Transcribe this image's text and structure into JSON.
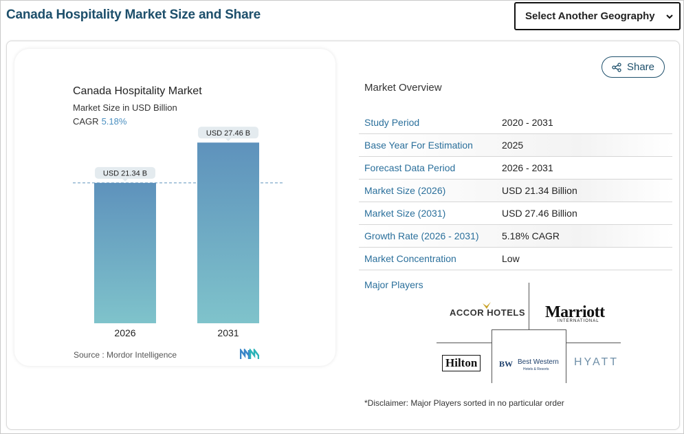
{
  "header": {
    "title": "Canada Hospitality Market Size and Share",
    "geo_select_label": "Select Another Geography"
  },
  "chart": {
    "title": "Canada Hospitality Market",
    "subtitle": "Market Size in USD Billion",
    "cagr_label": "CAGR",
    "cagr_value": "5.18%",
    "source": "Source :  Mordor Intelligence"
  },
  "chart_data": {
    "type": "bar",
    "categories": [
      "2026",
      "2031"
    ],
    "values": [
      21.34,
      27.46
    ],
    "data_labels": [
      "USD 21.34 B",
      "USD 27.46 B"
    ],
    "title": "Canada Hospitality Market",
    "ylabel": "Market Size in USD Billion",
    "xlabel": "",
    "ylim": [
      0,
      30
    ],
    "reference_line": 21.34,
    "colors": {
      "bar_top": "#5e92bc",
      "bar_bottom": "#7fc3cb",
      "line": "#5e92bc"
    }
  },
  "share": {
    "label": "Share"
  },
  "overview": {
    "heading": "Market Overview",
    "rows": [
      {
        "key": "Study Period",
        "value": "2020 - 2031"
      },
      {
        "key": "Base Year For Estimation",
        "value": "2025"
      },
      {
        "key": "Forecast Data Period",
        "value": "2026 - 2031"
      },
      {
        "key": "Market Size (2026)",
        "value": "USD 21.34 Billion"
      },
      {
        "key": "Market Size (2031)",
        "value": "USD 27.46 Billion"
      },
      {
        "key": "Growth Rate (2026 - 2031)",
        "value": "5.18% CAGR"
      },
      {
        "key": "Market Concentration",
        "value": "Low"
      }
    ],
    "major_players_label": "Major Players"
  },
  "players": {
    "accor": "ACCOR HOTELS",
    "marriott": "Marriott",
    "marriott_sub": "INTERNATIONAL",
    "hilton": "Hilton",
    "bw_mark": "BW",
    "bw_name": "Best Western",
    "bw_sub": "Hotels & Resorts",
    "hyatt": "HYATT"
  },
  "disclaimer": "*Disclaimer: Major Players sorted in no particular order",
  "colors": {
    "title": "#1d4f6b",
    "link": "#2a6f9b",
    "accent": "#4a8fc0"
  }
}
